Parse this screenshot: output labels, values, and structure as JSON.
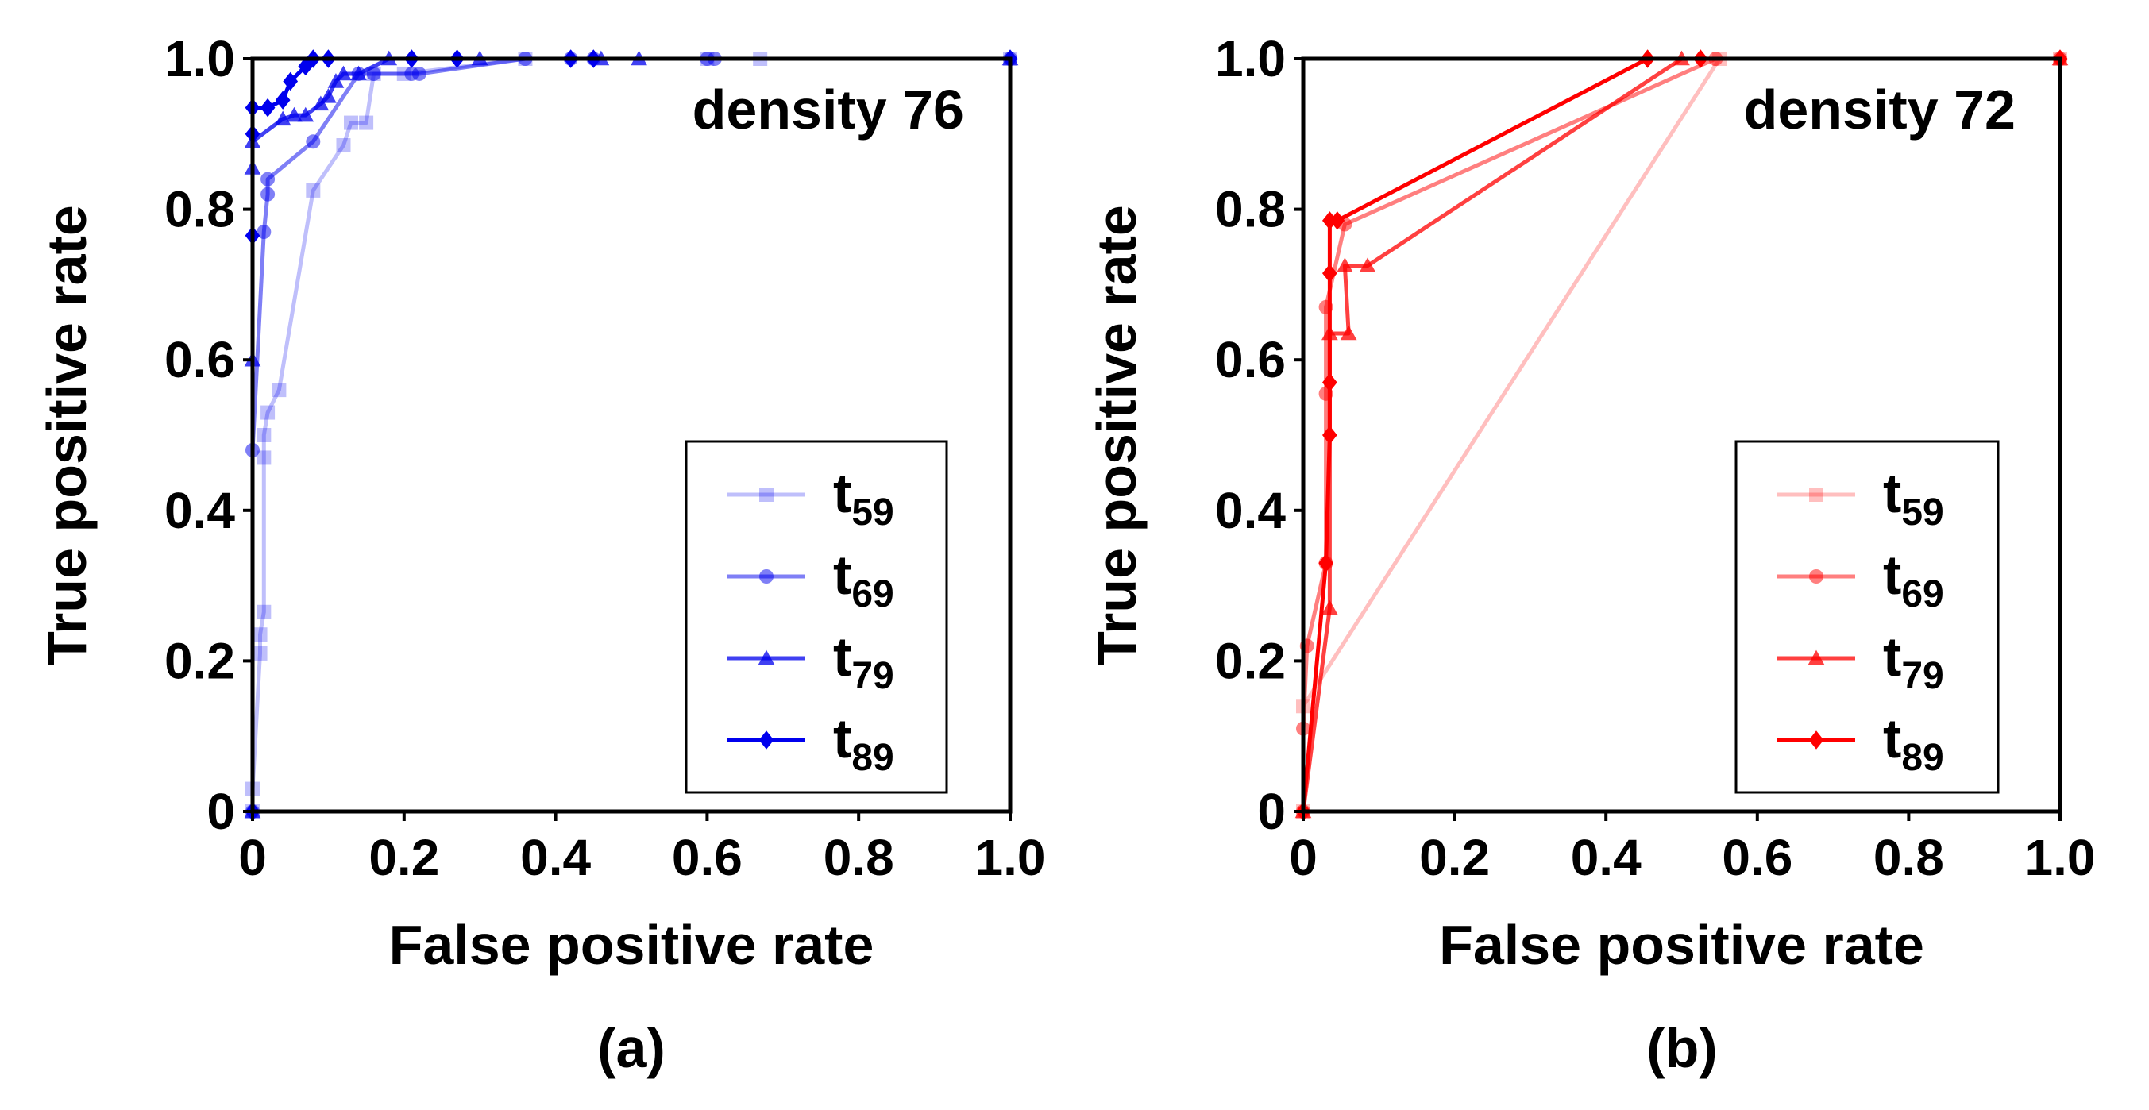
{
  "chart_data": [
    {
      "type": "line",
      "panel_label": "(a)",
      "annotation": "density 76",
      "xlabel": "False positive rate",
      "ylabel": "True positive rate",
      "xlim": [
        0,
        1
      ],
      "ylim": [
        0,
        1
      ],
      "xticks": [
        0,
        0.2,
        0.4,
        0.6,
        0.8,
        1.0
      ],
      "xtick_labels": [
        "0",
        "0.2",
        "0.4",
        "0.6",
        "0.8",
        "1.0"
      ],
      "yticks": [
        0,
        0.2,
        0.4,
        0.6,
        0.8,
        1.0
      ],
      "ytick_labels": [
        "0",
        "0.2",
        "0.4",
        "0.6",
        "0.8",
        "1.0"
      ],
      "grid": false,
      "legend_position": "bottom-right",
      "color": "#0000ee",
      "series": [
        {
          "name": "t",
          "sub": "59",
          "marker": "square",
          "opacity": 0.25,
          "points": [
            [
              0,
              0
            ],
            [
              0,
              0.03
            ],
            [
              0.01,
              0.21
            ],
            [
              0.01,
              0.235
            ],
            [
              0.015,
              0.265
            ],
            [
              0.015,
              0.47
            ],
            [
              0.015,
              0.5
            ],
            [
              0.02,
              0.53
            ],
            [
              0.035,
              0.56
            ],
            [
              0.08,
              0.825
            ],
            [
              0.12,
              0.885
            ],
            [
              0.13,
              0.915
            ],
            [
              0.15,
              0.915
            ],
            [
              0.16,
              0.98
            ],
            [
              0.2,
              0.98
            ],
            [
              0.36,
              1.0
            ],
            [
              0.6,
              1.0
            ],
            [
              0.67,
              1.0
            ],
            [
              1.0,
              1.0
            ]
          ]
        },
        {
          "name": "t",
          "sub": "69",
          "marker": "circle",
          "opacity": 0.5,
          "points": [
            [
              0,
              0
            ],
            [
              0,
              0.48
            ],
            [
              0.015,
              0.77
            ],
            [
              0.02,
              0.82
            ],
            [
              0.02,
              0.84
            ],
            [
              0.08,
              0.89
            ],
            [
              0.14,
              0.98
            ],
            [
              0.16,
              0.98
            ],
            [
              0.21,
              0.98
            ],
            [
              0.22,
              0.98
            ],
            [
              0.36,
              1.0
            ],
            [
              0.42,
              1.0
            ],
            [
              0.45,
              1.0
            ],
            [
              0.6,
              1.0
            ],
            [
              0.61,
              1.0
            ],
            [
              1.0,
              1.0
            ]
          ]
        },
        {
          "name": "t",
          "sub": "79",
          "marker": "triangle",
          "opacity": 0.75,
          "points": [
            [
              0,
              0
            ],
            [
              0,
              0.6
            ],
            [
              0,
              0.855
            ],
            [
              0,
              0.89
            ],
            [
              0.04,
              0.92
            ],
            [
              0.055,
              0.925
            ],
            [
              0.07,
              0.925
            ],
            [
              0.09,
              0.94
            ],
            [
              0.1,
              0.95
            ],
            [
              0.11,
              0.97
            ],
            [
              0.12,
              0.98
            ],
            [
              0.14,
              0.98
            ],
            [
              0.18,
              1.0
            ],
            [
              0.3,
              1.0
            ],
            [
              0.46,
              1.0
            ],
            [
              0.51,
              1.0
            ],
            [
              1.0,
              1.0
            ]
          ]
        },
        {
          "name": "t",
          "sub": "89",
          "marker": "diamond",
          "opacity": 1.0,
          "points": [
            [
              0,
              0
            ],
            [
              0,
              0.765
            ],
            [
              0,
              0.9
            ],
            [
              0,
              0.935
            ],
            [
              0.02,
              0.935
            ],
            [
              0.04,
              0.945
            ],
            [
              0.05,
              0.97
            ],
            [
              0.07,
              0.99
            ],
            [
              0.08,
              1.0
            ],
            [
              0.1,
              1.0
            ],
            [
              0.21,
              1.0
            ],
            [
              0.27,
              1.0
            ],
            [
              0.42,
              1.0
            ],
            [
              0.45,
              1.0
            ],
            [
              1.0,
              1.0
            ]
          ]
        }
      ]
    },
    {
      "type": "line",
      "panel_label": "(b)",
      "annotation": "density 72",
      "xlabel": "False positive rate",
      "ylabel": "True positive rate",
      "xlim": [
        0,
        1
      ],
      "ylim": [
        0,
        1
      ],
      "xticks": [
        0,
        0.2,
        0.4,
        0.6,
        0.8,
        1.0
      ],
      "xtick_labels": [
        "0",
        "0.2",
        "0.4",
        "0.6",
        "0.8",
        "1.0"
      ],
      "yticks": [
        0,
        0.2,
        0.4,
        0.6,
        0.8,
        1.0
      ],
      "ytick_labels": [
        "0",
        "0.2",
        "0.4",
        "0.6",
        "0.8",
        "1.0"
      ],
      "grid": false,
      "legend_position": "bottom-right",
      "color": "#ff0000",
      "series": [
        {
          "name": "t",
          "sub": "59",
          "marker": "square",
          "opacity": 0.25,
          "points": [
            [
              0,
              0
            ],
            [
              0,
              0.14
            ],
            [
              0.55,
              1.0
            ],
            [
              1.0,
              1.0
            ]
          ]
        },
        {
          "name": "t",
          "sub": "69",
          "marker": "circle",
          "opacity": 0.5,
          "points": [
            [
              0,
              0
            ],
            [
              0,
              0.11
            ],
            [
              0.005,
              0.22
            ],
            [
              0.03,
              0.33
            ],
            [
              0.03,
              0.555
            ],
            [
              0.03,
              0.67
            ],
            [
              0.055,
              0.78
            ],
            [
              0.545,
              1.0
            ],
            [
              1.0,
              1.0
            ]
          ]
        },
        {
          "name": "t",
          "sub": "79",
          "marker": "triangle",
          "opacity": 0.75,
          "points": [
            [
              0,
              0
            ],
            [
              0.035,
              0.27
            ],
            [
              0.035,
              0.635
            ],
            [
              0.06,
              0.635
            ],
            [
              0.055,
              0.725
            ],
            [
              0.085,
              0.725
            ],
            [
              0.5,
              1.0
            ],
            [
              1.0,
              1.0
            ]
          ]
        },
        {
          "name": "t",
          "sub": "89",
          "marker": "diamond",
          "opacity": 1.0,
          "points": [
            [
              0,
              0
            ],
            [
              0.03,
              0.33
            ],
            [
              0.035,
              0.5
            ],
            [
              0.035,
              0.57
            ],
            [
              0.035,
              0.715
            ],
            [
              0.035,
              0.785
            ],
            [
              0.045,
              0.785
            ],
            [
              0.455,
              1.0
            ],
            [
              0.525,
              1.0
            ],
            [
              1.0,
              1.0
            ]
          ]
        }
      ]
    }
  ]
}
